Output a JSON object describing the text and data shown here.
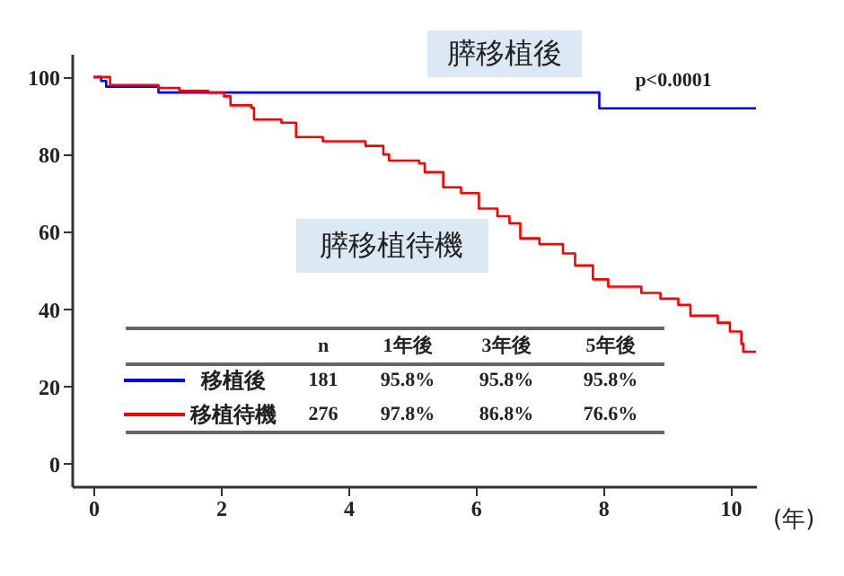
{
  "chart_data": {
    "type": "step",
    "xlabel": "(年)",
    "xlim": [
      -0.34,
      10.4
    ],
    "ylim": [
      -5.8,
      106
    ],
    "xticks": [
      0,
      2,
      4,
      6,
      8,
      10
    ],
    "yticks": [
      0,
      20,
      40,
      60,
      80,
      100
    ],
    "grid": false,
    "legend": "bottom left",
    "line_style": "solid",
    "marker": "none",
    "annotations": [
      "膵移植後",
      "膵移植待機",
      "p<0.0001",
      "n",
      "1年後",
      "3年後",
      "5年後",
      "181",
      "95.8%",
      "95.8%",
      "95.8%",
      "276",
      "97.8%",
      "86.8%",
      "76.6%"
    ],
    "series": [
      {
        "name": "移植後",
        "color": "#0000ff",
        "x": [
          0,
          0.12,
          0.2,
          1.02,
          7.94,
          10.4
        ],
        "values": [
          100,
          99,
          97.5,
          96,
          91.9,
          91.9
        ]
      },
      {
        "name": "移植待機",
        "color": "#ff0000",
        "x": [
          0,
          0.26,
          1.02,
          1.35,
          1.8,
          2.05,
          2.15,
          2.48,
          2.52,
          2.95,
          3.18,
          3.6,
          4.27,
          4.55,
          4.64,
          5.11,
          5.2,
          5.49,
          5.77,
          6.05,
          6.34,
          6.53,
          6.7,
          7.0,
          7.37,
          7.56,
          7.84,
          8.08,
          8.6,
          8.9,
          9.18,
          9.37,
          9.8,
          9.99,
          10.17,
          10.2,
          10.4
        ],
        "values": [
          100,
          97.9,
          97.2,
          96.4,
          96,
          95,
          92.7,
          92,
          89,
          88.2,
          84.5,
          83.4,
          82.2,
          80,
          78.4,
          77.7,
          75.4,
          71.5,
          70,
          66,
          64,
          62.2,
          58.3,
          56.8,
          54.4,
          51.3,
          47.7,
          45.8,
          44.2,
          42.7,
          41.1,
          38.3,
          36.5,
          34.2,
          31,
          29,
          29
        ]
      }
    ]
  }
}
